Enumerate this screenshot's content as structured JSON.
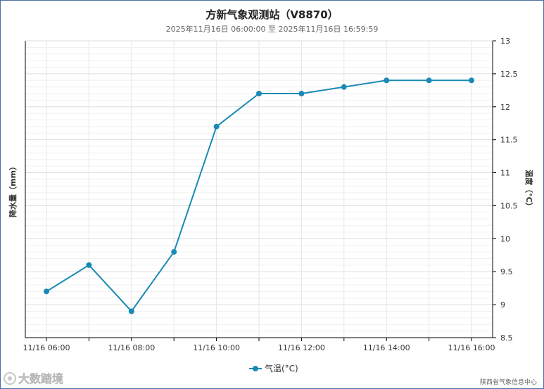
{
  "title": "方新气象观测站（V8870）",
  "subtitle": "2025年11月16日 06:00:00 至 2025年11月16日 16:59:59",
  "watermark_logo": "大数踏境",
  "watermark_source": "陕西省气象信息中心",
  "colors": {
    "series": "#1a8ab4",
    "grid": "#e6e6e6",
    "axis": "#000000"
  },
  "chart_data": {
    "type": "line",
    "x_type": "datetime",
    "x": [
      "11/16 06:00",
      "11/16 07:00",
      "11/16 08:00",
      "11/16 09:00",
      "11/16 10:00",
      "11/16 11:00",
      "11/16 12:00",
      "11/16 13:00",
      "11/16 14:00",
      "11/16 15:00",
      "11/16 16:00"
    ],
    "x_tick_labels": [
      "11/16 06:00",
      "11/16 08:00",
      "11/16 10:00",
      "11/16 12:00",
      "11/16 14:00",
      "11/16 16:00"
    ],
    "series": [
      {
        "name": "气温(°C)",
        "axis": "right",
        "values": [
          9.2,
          9.6,
          8.9,
          9.8,
          11.7,
          12.2,
          12.2,
          12.3,
          12.4,
          12.4,
          12.4
        ]
      }
    ],
    "y_left": {
      "label": "降水量（mm）",
      "ticks": []
    },
    "y_right": {
      "label": "温度（°C）",
      "range": [
        8.5,
        13
      ],
      "ticks": [
        "8.5",
        "9",
        "9.5",
        "10",
        "10.5",
        "11",
        "11.5",
        "12",
        "12.5",
        "13"
      ]
    },
    "grid": true,
    "legend_position": "bottom-center"
  }
}
